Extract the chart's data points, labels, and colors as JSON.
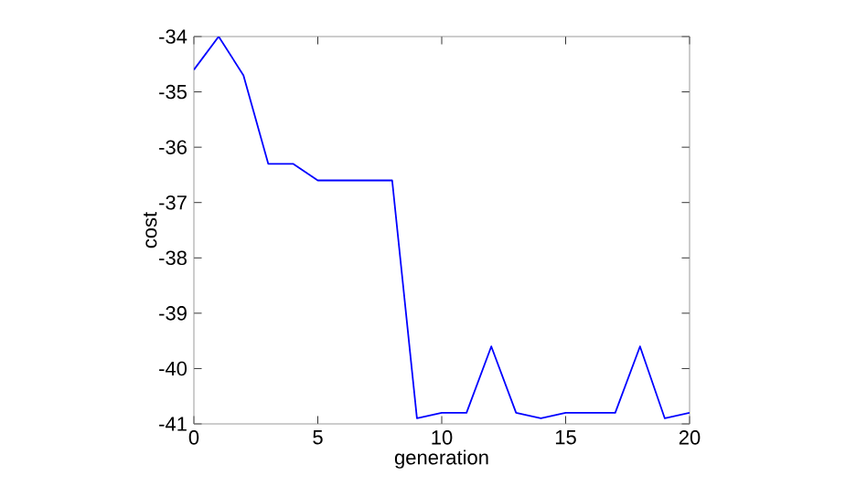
{
  "chart_data": {
    "type": "line",
    "xlabel": "generation",
    "ylabel": "cost",
    "x": [
      0,
      1,
      2,
      3,
      4,
      5,
      6,
      7,
      8,
      9,
      10,
      11,
      12,
      13,
      14,
      15,
      16,
      17,
      18,
      19,
      20
    ],
    "values": [
      -34.6,
      -34.0,
      -34.7,
      -36.3,
      -36.3,
      -36.6,
      -36.6,
      -36.6,
      -36.6,
      -40.9,
      -40.8,
      -40.8,
      -39.6,
      -40.8,
      -40.9,
      -40.8,
      -40.8,
      -40.8,
      -39.6,
      -40.9,
      -40.8
    ],
    "color": "#0000ff",
    "xlim": [
      0,
      20
    ],
    "ylim": [
      -41,
      -34
    ],
    "xticks": [
      0,
      5,
      10,
      15,
      20
    ],
    "yticks": [
      -41,
      -40,
      -39,
      -38,
      -37,
      -36,
      -35,
      -34
    ],
    "grid": false,
    "marker": "none",
    "line_style": "solid"
  }
}
